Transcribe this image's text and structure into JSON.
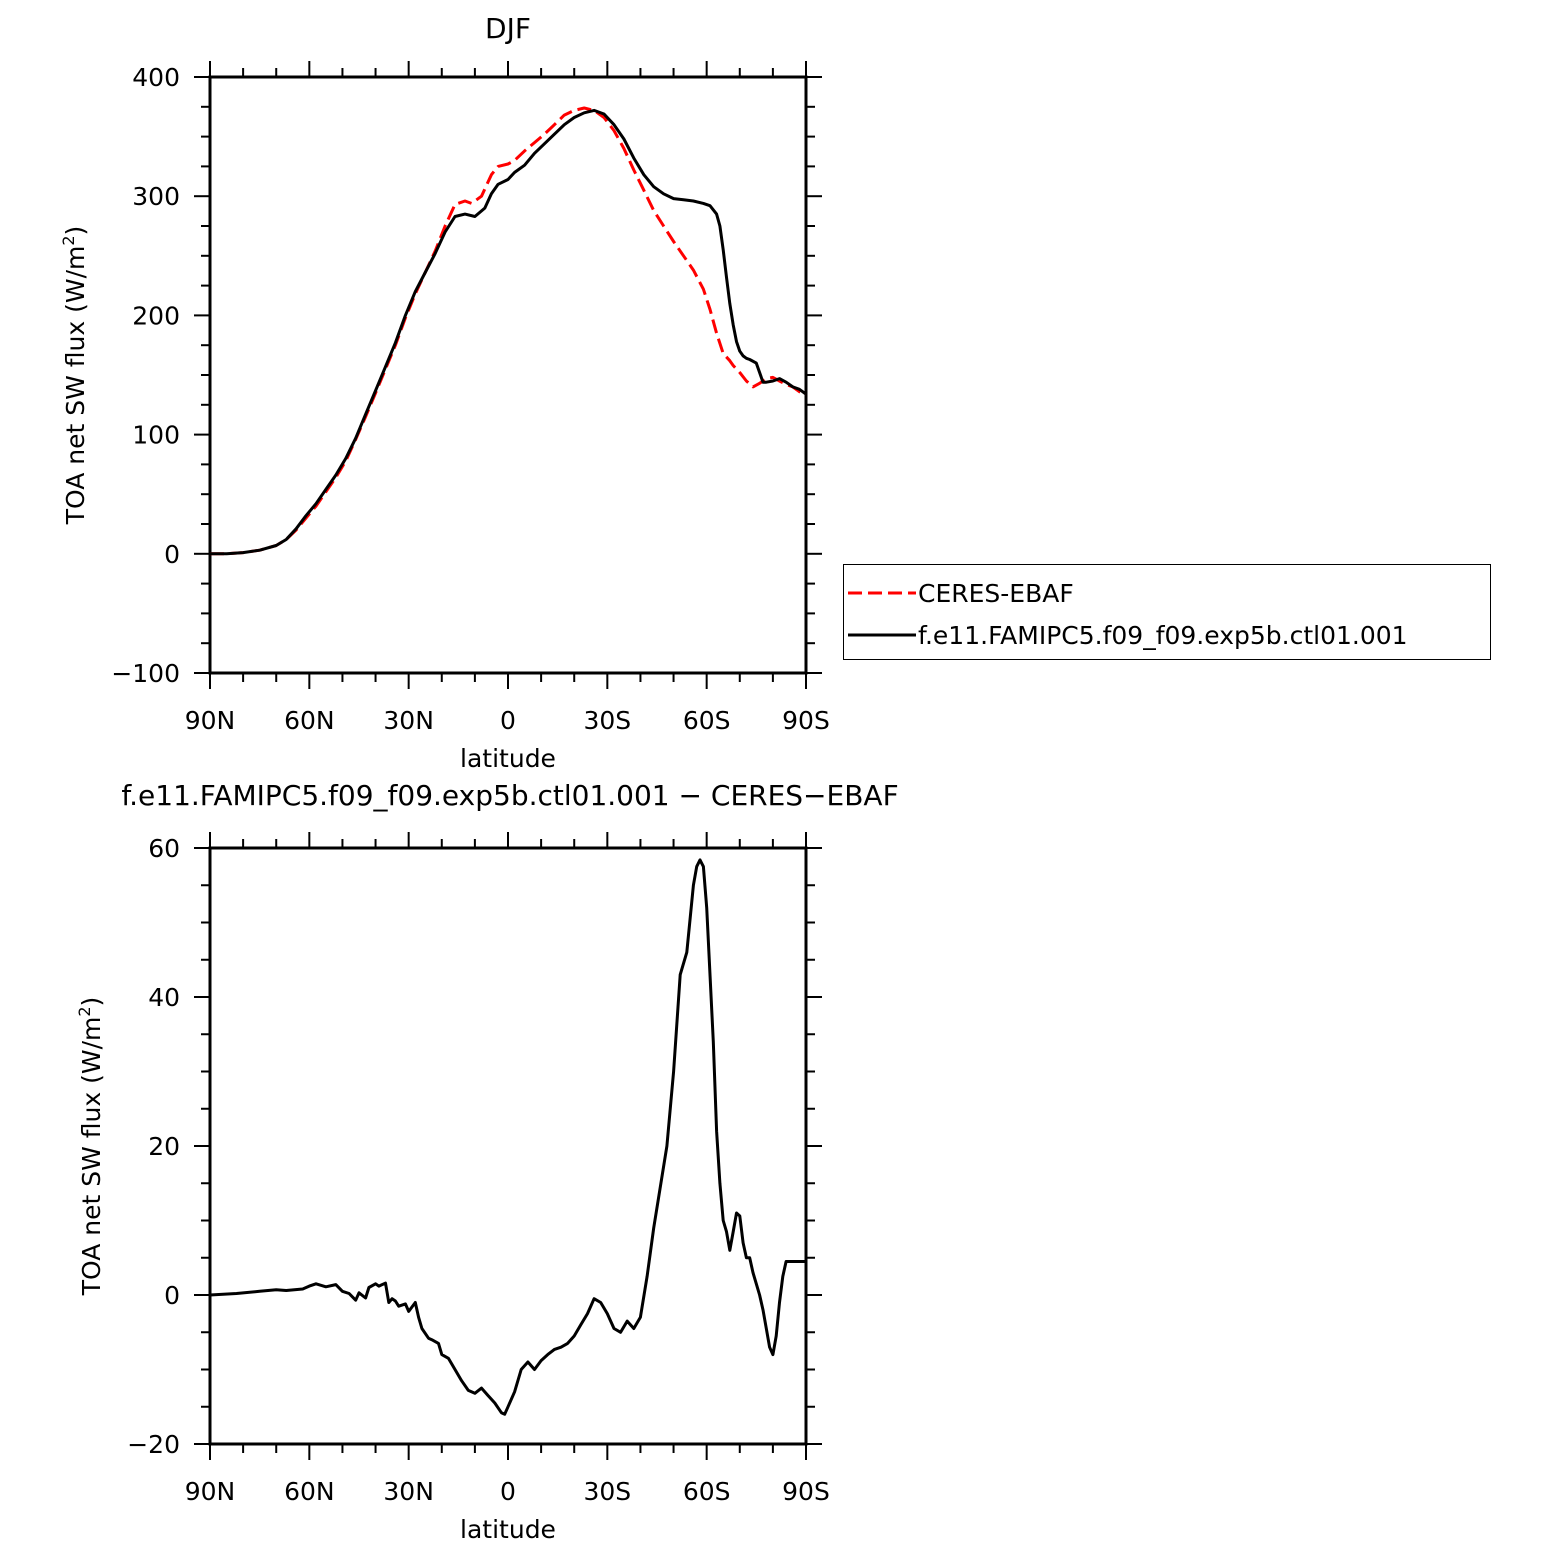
{
  "chart_data": [
    {
      "type": "line",
      "title": "DJF",
      "xlabel": "latitude",
      "ylabel": "TOA net SW flux (W/m",
      "ylabel_sup": "2",
      "ylabel_close": ")",
      "xlim": [
        90,
        -90
      ],
      "ylim": [
        -100,
        400
      ],
      "yticks": [
        -100,
        0,
        100,
        200,
        300,
        400
      ],
      "ytick_labels": [
        "−100",
        "0",
        "100",
        "200",
        "300",
        "400"
      ],
      "xticks": [
        90,
        60,
        30,
        0,
        -30,
        -60,
        -90
      ],
      "xtick_labels": [
        "90N",
        "60N",
        "30N",
        "0",
        "30S",
        "60S",
        "90S"
      ],
      "grid": false,
      "legend": "right",
      "series": [
        {
          "name": "CERES-EBAF",
          "color": "#ff0000",
          "dash": "dashed",
          "x": [
            90,
            85,
            80,
            75,
            70,
            67,
            64,
            61,
            58,
            55,
            52,
            49,
            46,
            43,
            40,
            37,
            34,
            31,
            28,
            25,
            22,
            19,
            16,
            13,
            11,
            8,
            5,
            3,
            0,
            -2,
            -5,
            -8,
            -11,
            -14,
            -17,
            -20,
            -23,
            -26,
            -29,
            -32,
            -35,
            -38,
            -41,
            -44,
            -47,
            -50,
            -53,
            -56,
            -59,
            -61,
            -63,
            -65,
            -67,
            -68,
            -70,
            -72,
            -74,
            -76,
            -78,
            -80,
            -82,
            -84,
            -86,
            -88,
            -90
          ],
          "y": [
            0,
            0,
            1,
            3,
            7,
            12,
            20,
            30,
            40,
            52,
            64,
            78,
            96,
            115,
            135,
            155,
            175,
            198,
            218,
            236,
            254,
            275,
            293,
            296,
            294,
            300,
            318,
            325,
            327,
            330,
            338,
            345,
            352,
            360,
            368,
            372,
            374,
            372,
            366,
            355,
            340,
            322,
            305,
            288,
            275,
            262,
            250,
            238,
            222,
            205,
            185,
            168,
            162,
            158,
            152,
            145,
            140,
            143,
            147,
            148,
            145,
            142,
            140,
            136,
            134
          ]
        },
        {
          "name": "f.e11.FAMIPC5.f09_f09.exp5b.ctl01.001",
          "color": "#000000",
          "dash": "solid",
          "x": [
            90,
            85,
            80,
            75,
            70,
            67,
            64,
            61,
            58,
            55,
            52,
            49,
            46,
            43,
            40,
            37,
            34,
            31,
            28,
            25,
            22,
            19,
            16,
            13,
            10,
            7,
            5,
            3,
            0,
            -2,
            -5,
            -8,
            -11,
            -14,
            -17,
            -20,
            -23,
            -26,
            -29,
            -32,
            -35,
            -38,
            -41,
            -44,
            -47,
            -50,
            -53,
            -56,
            -59,
            -61,
            -63,
            -64,
            -65,
            -66,
            -67,
            -68,
            -69,
            -70,
            -71,
            -72,
            -73,
            -75,
            -77,
            -78,
            -80,
            -82,
            -84,
            -86,
            -88,
            -90
          ],
          "y": [
            0,
            0,
            1,
            3,
            7,
            12,
            21,
            32,
            42,
            54,
            66,
            80,
            97,
            117,
            137,
            157,
            177,
            200,
            220,
            236,
            252,
            270,
            283,
            285,
            283,
            290,
            302,
            310,
            314,
            320,
            326,
            336,
            344,
            352,
            360,
            366,
            370,
            372,
            369,
            360,
            348,
            332,
            318,
            308,
            302,
            298,
            297,
            296,
            294,
            292,
            285,
            275,
            255,
            232,
            210,
            192,
            178,
            170,
            166,
            164,
            163,
            160,
            144,
            144,
            145,
            147,
            144,
            140,
            138,
            134
          ]
        }
      ]
    },
    {
      "type": "line",
      "title": "f.e11.FAMIPC5.f09_f09.exp5b.ctl01.001 − CERES−EBAF",
      "xlabel": "latitude",
      "ylabel": "TOA net SW flux (W/m",
      "ylabel_sup": "2",
      "ylabel_close": ")",
      "xlim": [
        90,
        -90
      ],
      "ylim": [
        -20,
        60
      ],
      "yticks": [
        -20,
        0,
        20,
        40,
        60
      ],
      "ytick_labels": [
        "−20",
        "0",
        "20",
        "40",
        "60"
      ],
      "xticks": [
        90,
        60,
        30,
        0,
        -30,
        -60,
        -90
      ],
      "xtick_labels": [
        "90N",
        "60N",
        "30N",
        "0",
        "30S",
        "60S",
        "90S"
      ],
      "grid": false,
      "series": [
        {
          "color": "#000000",
          "dash": "solid",
          "x": [
            90,
            82,
            75,
            70,
            67,
            62,
            60,
            58,
            55,
            52,
            50,
            48,
            46,
            45,
            43,
            42,
            40,
            39,
            37,
            36,
            35,
            34,
            33,
            31,
            30,
            28,
            27,
            26,
            24,
            23,
            21,
            20,
            18,
            16,
            14,
            12,
            10,
            8,
            6,
            4,
            2,
            1,
            0,
            -2,
            -4,
            -6,
            -8,
            -10,
            -12,
            -14,
            -16,
            -18,
            -20,
            -22,
            -24,
            -26,
            -28,
            -30,
            -32,
            -34,
            -36,
            -38,
            -40,
            -42,
            -44,
            -46,
            -48,
            -50,
            -52,
            -54,
            -56,
            -57,
            -58,
            -59,
            -60,
            -62,
            -63,
            -64,
            -65,
            -66,
            -67,
            -68,
            -69,
            -70,
            -71,
            -72,
            -73,
            -74,
            -75,
            -76,
            -77,
            -78,
            -79,
            -80,
            -81,
            -82,
            -83,
            -84,
            -85,
            -86,
            -87,
            -88,
            -89,
            -90
          ],
          "y": [
            0,
            0.2,
            0.5,
            0.7,
            0.6,
            0.8,
            1.2,
            1.5,
            1.1,
            1.4,
            0.5,
            0.2,
            -0.7,
            0.3,
            -0.4,
            1.0,
            1.5,
            1.2,
            1.6,
            -1.0,
            -0.5,
            -0.8,
            -1.5,
            -1.2,
            -2.2,
            -1.0,
            -3.0,
            -4.5,
            -5.8,
            -6.0,
            -6.5,
            -8.0,
            -8.5,
            -10.0,
            -11.5,
            -12.8,
            -13.2,
            -12.5,
            -13.5,
            -14.5,
            -15.8,
            -16.0,
            -15.0,
            -13.0,
            -10.0,
            -9.0,
            -10.0,
            -8.8,
            -8.0,
            -7.3,
            -7.0,
            -6.5,
            -5.5,
            -4.0,
            -2.5,
            -0.5,
            -1.0,
            -2.5,
            -4.5,
            -5.0,
            -3.5,
            -4.5,
            -3.0,
            2.5,
            9.0,
            14.5,
            20.0,
            30.0,
            43.0,
            46.0,
            55.0,
            57.5,
            58.4,
            57.5,
            52.0,
            34.0,
            22.0,
            15.0,
            10.0,
            8.5,
            6.0,
            8.5,
            11.0,
            10.6,
            7.0,
            5.0,
            5.0,
            3.0,
            1.5,
            0.0,
            -2.0,
            -4.5,
            -7.0,
            -8.0,
            -5.5,
            -1.0,
            2.5,
            4.5,
            4.5,
            4.5,
            4.5,
            4.5,
            4.5,
            4.5
          ]
        }
      ]
    }
  ]
}
